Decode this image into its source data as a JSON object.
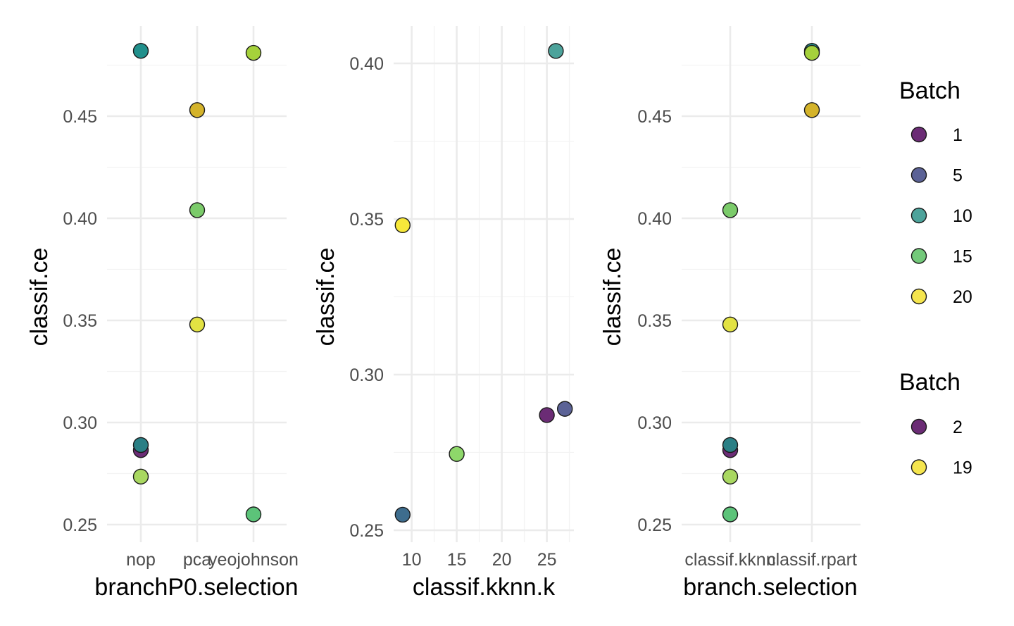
{
  "chart_data": {
    "panels": [
      {
        "type": "scatter",
        "x_type": "categorical",
        "categories": [
          "nop",
          "pca",
          "yeojohnson"
        ],
        "xlabel": "branchP0.selection",
        "ylabel": "classif.ce",
        "ylim": [
          0.245,
          0.487
        ],
        "yticks": [
          "0.25",
          "0.30",
          "0.35",
          "0.40",
          "0.45"
        ],
        "points": [
          {
            "x": "nop",
            "y": 0.482,
            "color": "#21908C"
          },
          {
            "x": "pca",
            "y": 0.453,
            "color": "#D4B32A"
          },
          {
            "x": "yeojohnson",
            "y": 0.481,
            "color": "#A5D13B"
          },
          {
            "x": "pca",
            "y": 0.404,
            "color": "#7BCB6A"
          },
          {
            "x": "pca",
            "y": 0.348,
            "color": "#E2E243"
          },
          {
            "x": "nop",
            "y": 0.2865,
            "color": "#6B2C75"
          },
          {
            "x": "nop",
            "y": 0.289,
            "color": "#2A7F85"
          },
          {
            "x": "nop",
            "y": 0.2735,
            "color": "#A9D861"
          },
          {
            "x": "yeojohnson",
            "y": 0.255,
            "color": "#5CC379"
          }
        ]
      },
      {
        "type": "scatter",
        "x_type": "numeric",
        "xlim": [
          8,
          28
        ],
        "xticks": [
          10,
          15,
          20,
          25
        ],
        "xlabel": "classif.kknn.k",
        "ylabel": "classif.ce",
        "ylim": [
          0.249,
          0.412
        ],
        "yticks": [
          "0.25",
          "0.30",
          "0.35",
          "0.40"
        ],
        "points": [
          {
            "x": 26,
            "y": 0.404,
            "color": "#4DA39B"
          },
          {
            "x": 9,
            "y": 0.348,
            "color": "#F7E83A"
          },
          {
            "x": 25,
            "y": 0.287,
            "color": "#6B2C75"
          },
          {
            "x": 27,
            "y": 0.289,
            "color": "#5B6296"
          },
          {
            "x": 15,
            "y": 0.2745,
            "color": "#8ED76A"
          },
          {
            "x": 9,
            "y": 0.255,
            "color": "#3E6D8E"
          }
        ]
      },
      {
        "type": "scatter",
        "x_type": "categorical",
        "categories": [
          "classif.kknn",
          "classif.rpart"
        ],
        "xlabel": "branch.selection",
        "ylabel": "classif.ce",
        "ylim": [
          0.245,
          0.487
        ],
        "yticks": [
          "0.25",
          "0.30",
          "0.35",
          "0.40",
          "0.45"
        ],
        "points": [
          {
            "x": "classif.rpart",
            "y": 0.482,
            "color": "#21908C"
          },
          {
            "x": "classif.rpart",
            "y": 0.481,
            "color": "#A5D13B"
          },
          {
            "x": "classif.rpart",
            "y": 0.453,
            "color": "#D4B32A"
          },
          {
            "x": "classif.kknn",
            "y": 0.404,
            "color": "#7BCB6A"
          },
          {
            "x": "classif.kknn",
            "y": 0.348,
            "color": "#E2E243"
          },
          {
            "x": "classif.kknn",
            "y": 0.2865,
            "color": "#6B2C75"
          },
          {
            "x": "classif.kknn",
            "y": 0.289,
            "color": "#2A7F85"
          },
          {
            "x": "classif.kknn",
            "y": 0.2735,
            "color": "#A9D861"
          },
          {
            "x": "classif.kknn",
            "y": 0.255,
            "color": "#5CC379"
          }
        ]
      }
    ],
    "legends": [
      {
        "title": "Batch",
        "items": [
          {
            "label": "1",
            "color": "#6B2C75"
          },
          {
            "label": "5",
            "color": "#5B6296"
          },
          {
            "label": "10",
            "color": "#4DA39B"
          },
          {
            "label": "15",
            "color": "#73C97A"
          },
          {
            "label": "20",
            "color": "#F5E54E"
          }
        ]
      },
      {
        "title": "Batch",
        "items": [
          {
            "label": "2",
            "color": "#6B2C75"
          },
          {
            "label": "19",
            "color": "#F5E54E"
          }
        ]
      }
    ]
  }
}
